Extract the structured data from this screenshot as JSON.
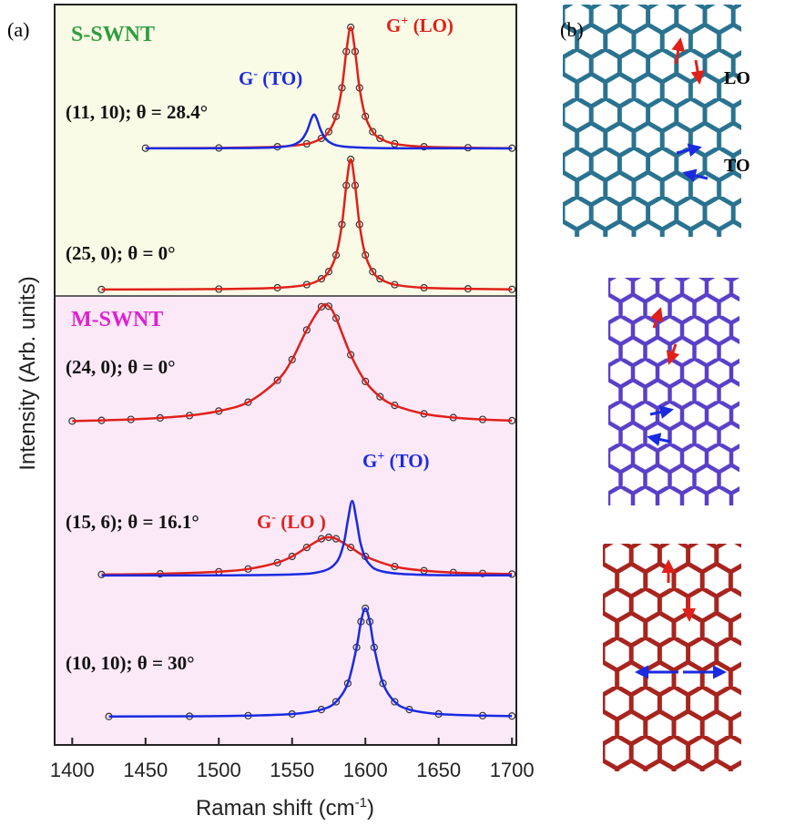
{
  "chart_data": {
    "type": "line",
    "panel_label": "(a)",
    "xlabel": {
      "text": "Raman shift (cm",
      "sup": "-1",
      "rest": ")"
    },
    "ylabel": "Intensity (Arb. units)",
    "xlim": [
      1388,
      1703
    ],
    "xticks": [
      1400,
      1450,
      1500,
      1550,
      1600,
      1650,
      1700
    ],
    "groups": [
      {
        "label": "S-SWNT",
        "color": "#2e9e3e",
        "background": "#fafbe6"
      },
      {
        "label": "M-SWNT",
        "color": "#e020d0",
        "background": "#fbe9f8"
      }
    ],
    "panels": [
      {
        "label": "(11, 10); θ = 28.4°",
        "series": [
          {
            "color": "#e0201a",
            "x": [
              1450,
              1500,
              1540,
              1560,
              1570,
              1575,
              1580,
              1584,
              1587,
              1590,
              1593,
              1596,
              1600,
              1605,
              1610,
              1620,
              1640,
              1670,
              1700
            ],
            "values": [
              0.002,
              0.004,
              0.014,
              0.038,
              0.083,
              0.138,
              0.265,
              0.5,
              0.8,
              1.0,
              0.8,
              0.5,
              0.265,
              0.138,
              0.083,
              0.038,
              0.014,
              0.006,
              0.002
            ]
          },
          {
            "color": "#1a2ae0",
            "x": [
              1450,
              1520,
              1545,
              1555,
              1560,
              1563,
              1565,
              1567,
              1570,
              1575,
              1585,
              1610,
              1660,
              1700
            ],
            "values": [
              0.001,
              0.003,
              0.016,
              0.056,
              0.14,
              0.241,
              0.28,
              0.241,
              0.14,
              0.056,
              0.016,
              0.003,
              0.001,
              0.0
            ]
          }
        ]
      },
      {
        "label": "(25, 0); θ = 0°",
        "series": [
          {
            "color": "#e0201a",
            "x": [
              1420,
              1500,
              1540,
              1560,
              1570,
              1575,
              1580,
              1584,
              1587,
              1590,
              1593,
              1596,
              1600,
              1605,
              1610,
              1620,
              1640,
              1670,
              1700
            ],
            "values": [
              0.001,
              0.004,
              0.014,
              0.038,
              0.083,
              0.138,
              0.265,
              0.5,
              0.8,
              1.0,
              0.8,
              0.5,
              0.265,
              0.138,
              0.083,
              0.038,
              0.014,
              0.006,
              0.002
            ]
          }
        ]
      },
      {
        "label": "(24, 0); θ = 0°",
        "series": [
          {
            "color": "#e0201a",
            "x": [
              1400,
              1420,
              1440,
              1460,
              1480,
              1500,
              1520,
              1540,
              1550,
              1560,
              1570,
              1575,
              1580,
              1590,
              1600,
              1610,
              1620,
              1640,
              1660,
              1680,
              1700
            ],
            "values": [
              0.02,
              0.026,
              0.034,
              0.047,
              0.067,
              0.105,
              0.18,
              0.365,
              0.54,
              0.79,
              0.986,
              0.99,
              0.89,
              0.58,
              0.355,
              0.226,
              0.153,
              0.082,
              0.05,
              0.034,
              0.024
            ]
          }
        ]
      },
      {
        "label": "(15, 6); θ = 16.1°",
        "series": [
          {
            "color": "#e0201a",
            "x": [
              1420,
              1460,
              1500,
              1520,
              1540,
              1550,
              1560,
              1570,
              1575,
              1580,
              1590,
              1600,
              1620,
              1640,
              1660,
              1680,
              1700
            ],
            "values": [
              0.011,
              0.019,
              0.042,
              0.072,
              0.142,
              0.21,
              0.309,
              0.404,
              0.42,
              0.404,
              0.309,
              0.21,
              0.099,
              0.054,
              0.033,
              0.023,
              0.016
            ]
          },
          {
            "color": "#1a2ae0",
            "x": [
              1420,
              1500,
              1550,
              1570,
              1580,
              1585,
              1588,
              1591,
              1594,
              1597,
              1602,
              1612,
              1640,
              1700
            ],
            "values": [
              0.001,
              0.002,
              0.012,
              0.044,
              0.14,
              0.336,
              0.603,
              0.82,
              0.603,
              0.336,
              0.14,
              0.044,
              0.008,
              0.002
            ]
          }
        ]
      },
      {
        "label": "(10, 10); θ = 30°",
        "series": [
          {
            "color": "#1a2ae0",
            "x": [
              1425,
              1480,
              1520,
              1550,
              1570,
              1580,
              1588,
              1594,
              1597,
              1600,
              1603,
              1606,
              1612,
              1620,
              1630,
              1650,
              1680,
              1700
            ],
            "values": [
              0.002,
              0.004,
              0.01,
              0.025,
              0.066,
              0.138,
              0.308,
              0.64,
              0.877,
              1.0,
              0.877,
              0.64,
              0.308,
              0.138,
              0.066,
              0.025,
              0.01,
              0.006
            ]
          }
        ]
      }
    ],
    "annotations": [
      {
        "base": "G",
        "sup": "+",
        "rest": " (LO)",
        "color": "#e0201a"
      },
      {
        "base": "G",
        "sup": "-",
        "rest": " (TO)",
        "color": "#1a2ae0"
      },
      {
        "base": "G",
        "sup": "-",
        "rest": " (LO )",
        "color": "#e0201a"
      },
      {
        "base": "G",
        "sup": "+",
        "rest": " (TO)",
        "color": "#1a2ae0"
      }
    ]
  },
  "panel_b": {
    "label": "(b)",
    "modes": [
      {
        "text": "LO",
        "color": "#e0201a"
      },
      {
        "text": "TO",
        "color": "#1a2ae0"
      }
    ]
  }
}
